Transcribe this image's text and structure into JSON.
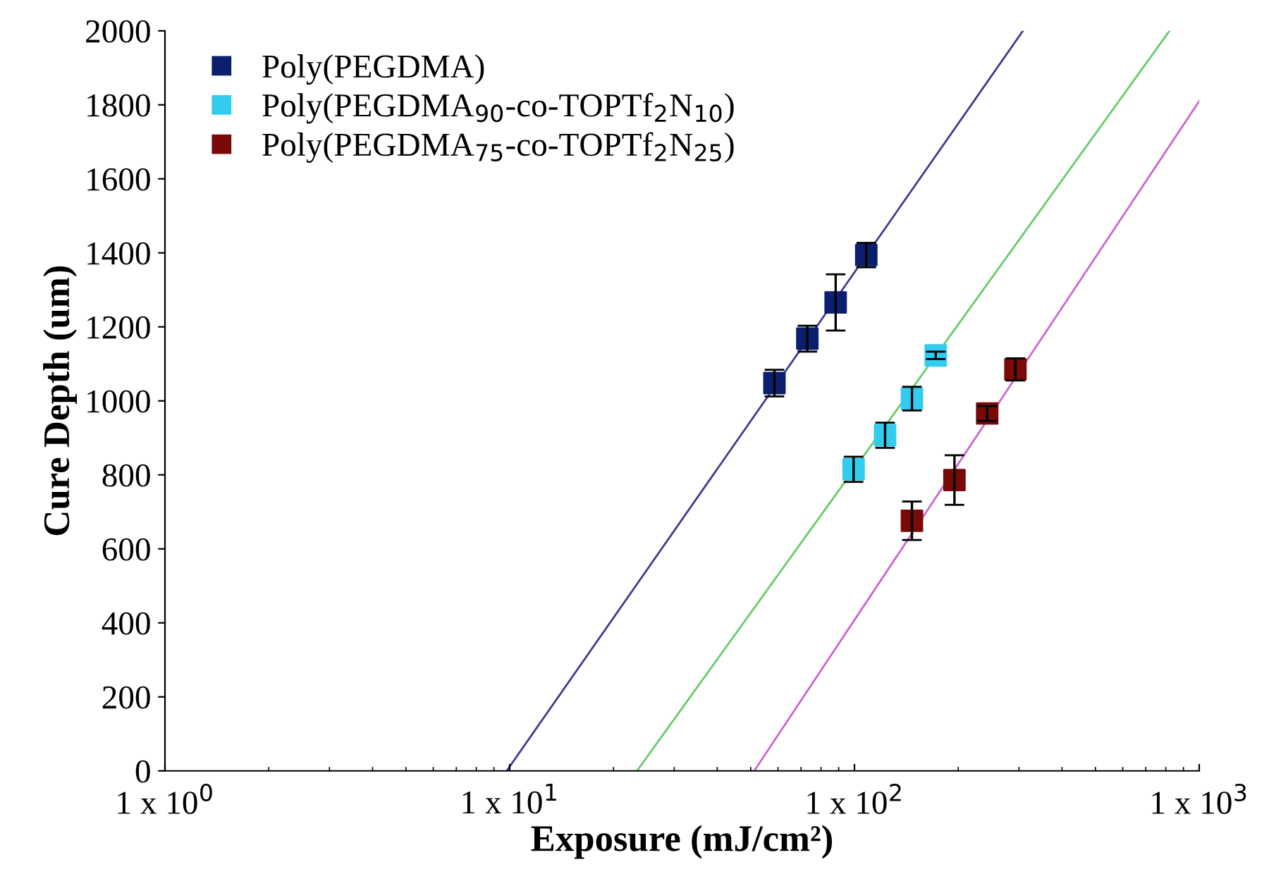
{
  "chart_data": {
    "type": "scatter",
    "xlabel": "Exposure (mJ/cm²)",
    "ylabel": "Cure Depth (um)",
    "log": "x",
    "xlim": [
      1,
      1000
    ],
    "xticks": [
      {
        "value": 1,
        "label": "1 x 10$^{0}$"
      },
      {
        "value": 10,
        "label": "1 x 10$^{1}$"
      },
      {
        "value": 100,
        "label": "1 x 10$^{2}$"
      },
      {
        "value": 1000,
        "label": "1 x 10$^{3}$"
      }
    ],
    "ylim": [
      0,
      2000
    ],
    "yticks": [
      0,
      200,
      400,
      600,
      800,
      1000,
      1200,
      1400,
      1600,
      1800,
      2000
    ],
    "grid": false,
    "legend": "top left",
    "marker": "square",
    "series": [
      {
        "name": "Poly(PEGDMA)",
        "color": "#0a1f6e",
        "x": [
          58.6,
          73.0,
          88.2,
          108.2
        ],
        "values": [
          1048,
          1168,
          1266,
          1394
        ],
        "errors": [
          36,
          35,
          76,
          33
        ]
      },
      {
        "name": "Poly(PEGDMA$_{90}$-co-TOPTf$_{2}$N$_{10}$)",
        "color": "#33ccee",
        "x": [
          99.4,
          122.7,
          146.8,
          172.1
        ],
        "values": [
          815,
          907,
          1006,
          1123
        ],
        "errors": [
          34,
          34,
          32,
          10
        ]
      },
      {
        "name": "Poly(PEGDMA$_{75}$-co-TOPTf$_{2}$N$_{25}$)",
        "color": "#7a0a0a",
        "x": [
          146.8,
          195,
          242.7,
          293
        ],
        "values": [
          676,
          786,
          966,
          1085
        ],
        "errors": [
          52,
          67,
          20,
          30
        ]
      },
      {
        "type": "line",
        "color": "#3c3c8c",
        "marker": "none",
        "x": [
          9.8,
          308
        ],
        "values": [
          0,
          2000
        ]
      },
      {
        "type": "line",
        "color": "#66cc66",
        "marker": "none",
        "x": [
          23.4,
          820
        ],
        "values": [
          0,
          2000
        ]
      },
      {
        "type": "line",
        "color": "#cc66cc",
        "marker": "none",
        "x": [
          51.2,
          1000
        ],
        "values": [
          0,
          1810
        ]
      }
    ]
  }
}
